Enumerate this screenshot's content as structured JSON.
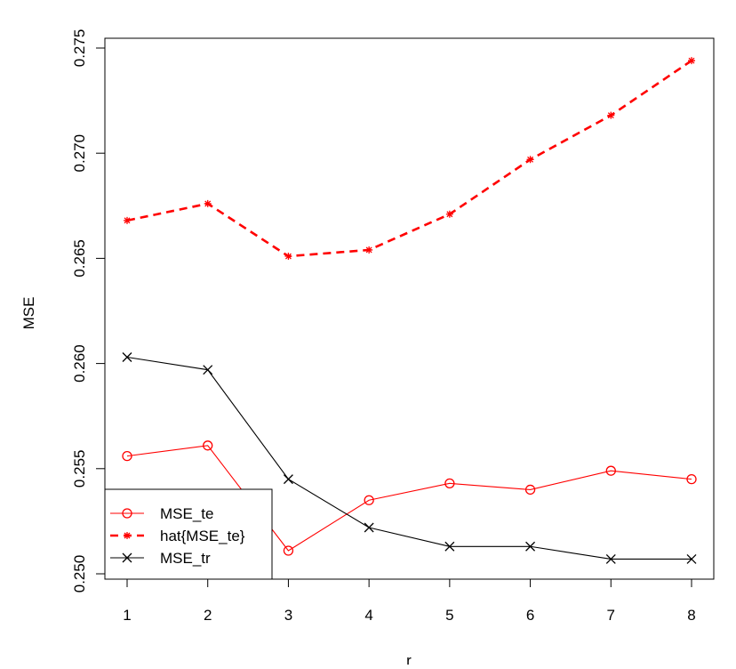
{
  "chart_data": {
    "type": "line",
    "title": "",
    "xlabel": "r",
    "ylabel": "MSE",
    "x": [
      1,
      2,
      3,
      4,
      5,
      6,
      7,
      8
    ],
    "xlim": [
      1,
      8
    ],
    "ylim": [
      0.25,
      0.275
    ],
    "x_ticks": [
      "1",
      "2",
      "3",
      "4",
      "5",
      "6",
      "7",
      "8"
    ],
    "y_ticks": [
      "0.250",
      "0.255",
      "0.260",
      "0.265",
      "0.270",
      "0.275"
    ],
    "grid": false,
    "legend_position": "bottom-left",
    "series": [
      {
        "name": "MSE_te",
        "color": "#ff0000",
        "line": "solid",
        "marker": "o",
        "values": [
          0.2556,
          0.2561,
          0.2511,
          0.2535,
          0.2543,
          0.254,
          0.2549,
          0.2545
        ]
      },
      {
        "name": "hat{MSE_te}",
        "color": "#ff0000",
        "line": "dashed",
        "marker": "*",
        "values": [
          0.2668,
          0.2676,
          0.2651,
          0.2654,
          0.2671,
          0.2697,
          0.2718,
          0.2744
        ]
      },
      {
        "name": "MSE_tr",
        "color": "#000000",
        "line": "solid",
        "marker": "x",
        "values": [
          0.2603,
          0.2597,
          0.2545,
          0.2522,
          0.2513,
          0.2513,
          0.2507,
          0.2507
        ]
      }
    ]
  }
}
